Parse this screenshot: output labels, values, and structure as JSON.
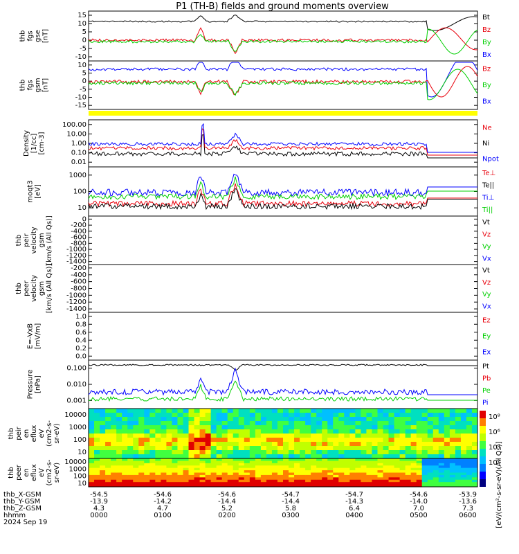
{
  "title": "P1 (TH-B) fields and ground moments overview",
  "colors": {
    "black": "#000000",
    "red": "#e8000b",
    "green": "#00d000",
    "blue": "#0000ff",
    "yellow": "#ffff00"
  },
  "panels": [
    {
      "id": "p1",
      "ylabel": [
        "thb",
        "fgs",
        "gse",
        "[nT]"
      ],
      "ticks": [
        "15",
        "10",
        "5",
        "0",
        "-5",
        "-10"
      ],
      "legend": [
        {
          "t": "Bt",
          "c": "black"
        },
        {
          "t": "Bz",
          "c": "red"
        },
        {
          "t": "By",
          "c": "green"
        },
        {
          "t": "Bx",
          "c": "blue"
        }
      ]
    },
    {
      "id": "p2",
      "ylabel": [
        "thb",
        "fgs",
        "gsm",
        "[nT]"
      ],
      "ticks": [
        "10",
        "5",
        "0",
        "-5",
        "-10",
        "-15"
      ],
      "legend": [
        {
          "t": "Bz",
          "c": "red"
        },
        {
          "t": "By",
          "c": "green"
        },
        {
          "t": "Bx",
          "c": "blue"
        }
      ]
    },
    {
      "id": "p3",
      "ylabel": [
        "Density",
        "[1/cc]",
        "[cm-3]"
      ],
      "ticks": [
        "100.00",
        "10.00",
        "1.00",
        "0.10",
        "0.01"
      ],
      "legend": [
        {
          "t": "Ne",
          "c": "red"
        },
        {
          "t": "Ni",
          "c": "black"
        },
        {
          "t": "Npot",
          "c": "blue"
        }
      ]
    },
    {
      "id": "p4",
      "ylabel": [
        "moqt3",
        "[eV]"
      ],
      "ticks": [
        "1000",
        "100",
        "10"
      ],
      "legend": [
        {
          "t": "Te⊥",
          "c": "red"
        },
        {
          "t": "Te||",
          "c": "black"
        },
        {
          "t": "Ti⊥",
          "c": "blue"
        },
        {
          "t": "Ti||",
          "c": "green"
        }
      ]
    },
    {
      "id": "p5",
      "ylabel": [
        "thb",
        "peir",
        "velocity",
        "gsm",
        "[km/s (All Qs)]"
      ],
      "ticks": [
        "0",
        "-200",
        "-400",
        "-600",
        "-800",
        "-1000",
        "-1200",
        "-1400"
      ],
      "legend": [
        {
          "t": "Vt",
          "c": "black"
        },
        {
          "t": "Vz",
          "c": "red"
        },
        {
          "t": "Vy",
          "c": "green"
        },
        {
          "t": "Vx",
          "c": "blue"
        }
      ]
    },
    {
      "id": "p6",
      "ylabel": [
        "thb",
        "peer",
        "velocity",
        "gsm",
        "[km/s (All Qs)]"
      ],
      "ticks": [
        "-200",
        "-400",
        "-600",
        "-800",
        "-1000",
        "-1200",
        "-1400"
      ],
      "legend": [
        {
          "t": "Vt",
          "c": "black"
        },
        {
          "t": "Vz",
          "c": "red"
        },
        {
          "t": "Vy",
          "c": "green"
        },
        {
          "t": "Vx",
          "c": "blue"
        }
      ]
    },
    {
      "id": "p7",
      "ylabel": [
        "E=-VxB",
        "[mV/m]"
      ],
      "ticks": [
        "1.0",
        "0.8",
        "0.6",
        "0.4",
        "0.2",
        "0.0"
      ],
      "legend": [
        {
          "t": "Ez",
          "c": "red"
        },
        {
          "t": "Ey",
          "c": "green"
        },
        {
          "t": "Ex",
          "c": "blue"
        }
      ]
    },
    {
      "id": "p8",
      "ylabel": [
        "Pressure",
        "[nPa]"
      ],
      "ticks": [
        "0.100",
        "0.010",
        "0.001"
      ],
      "legend": [
        {
          "t": "Pt",
          "c": "black"
        },
        {
          "t": "Pb",
          "c": "red"
        },
        {
          "t": "Pe",
          "c": "green"
        },
        {
          "t": "Pi",
          "c": "blue"
        }
      ]
    },
    {
      "id": "p9",
      "ylabel": [
        "thb",
        "peir",
        "en",
        "eflux",
        "eV",
        "(cm2-s-",
        "sr-eV)"
      ],
      "ticks": [
        "10000",
        "1000",
        "100",
        "10"
      ]
    },
    {
      "id": "p10",
      "ylabel": [
        "thb",
        "peer",
        "en",
        "eflux",
        "eV",
        "(cm2-s-",
        "sr-eV)"
      ],
      "ticks": [
        "10000",
        "1000",
        "100",
        "10"
      ]
    }
  ],
  "colorbar": {
    "labels": [
      "10⁸",
      "10⁶",
      "10⁴",
      "10²"
    ],
    "unit": "[eV/(cm²-s-sr-eV)(All Qs)]"
  },
  "footer": {
    "rows": [
      {
        "label": "thb_X-GSM",
        "vals": [
          "-54.5",
          "-54.6",
          "-54.6",
          "-54.7",
          "-54.7",
          "-54.6",
          "-53.9"
        ]
      },
      {
        "label": "thb_Y-GSM",
        "vals": [
          "-13.9",
          "-14.2",
          "-14.4",
          "-14.4",
          "-14.3",
          "-14.0",
          "-13.6"
        ]
      },
      {
        "label": "thb_Z-GSM",
        "vals": [
          "4.3",
          "4.7",
          "5.2",
          "5.8",
          "6.4",
          "7.0",
          "7.3"
        ]
      },
      {
        "label": "hhmm",
        "vals": [
          "0000",
          "0100",
          "0200",
          "0300",
          "0400",
          "0500",
          "0600"
        ]
      }
    ],
    "date": "2024 Sep 19"
  },
  "chart_data": {
    "type": "line",
    "x": [
      "0000",
      "0100",
      "0200",
      "0300",
      "0400",
      "0500",
      "0600"
    ],
    "xlabel": "hhmm",
    "series": [
      {
        "name": "Bt",
        "values": [
          12,
          12,
          17,
          12,
          11,
          11,
          11
        ]
      },
      {
        "name": "Bz",
        "values": [
          1,
          1,
          -8,
          -1,
          0,
          0,
          -4
        ]
      },
      {
        "name": "By",
        "values": [
          0,
          0,
          -10,
          -2,
          -1,
          -1,
          6
        ]
      },
      {
        "name": "Bx",
        "values": [
          7,
          7,
          6,
          8,
          8,
          8,
          -10
        ]
      },
      {
        "name": "Ni",
        "values": [
          0.1,
          0.05,
          0.3,
          0.08,
          0.15,
          0.1,
          0.02
        ]
      },
      {
        "name": "Ne",
        "values": [
          0.15,
          0.08,
          0.5,
          0.12,
          0.25,
          0.2,
          0.05
        ]
      },
      {
        "name": "Npot",
        "values": [
          0.2,
          0.1,
          0.7,
          0.2,
          0.4,
          0.3,
          0.1
        ]
      },
      {
        "name": "Ti⊥",
        "values": [
          200,
          400,
          2000,
          150,
          150,
          120,
          500
        ]
      },
      {
        "name": "Te||",
        "values": [
          60,
          80,
          500,
          40,
          50,
          40,
          200
        ]
      },
      {
        "name": "Pt",
        "values": [
          0.05,
          0.05,
          0.06,
          0.04,
          0.04,
          0.04,
          0.04
        ]
      },
      {
        "name": "Pi",
        "values": [
          0.002,
          0.0015,
          0.02,
          0.002,
          0.003,
          0.002,
          0.002
        ]
      },
      {
        "name": "Pe",
        "values": [
          0.001,
          0.0008,
          0.005,
          0.001,
          0.002,
          0.001,
          0.001
        ]
      }
    ]
  }
}
